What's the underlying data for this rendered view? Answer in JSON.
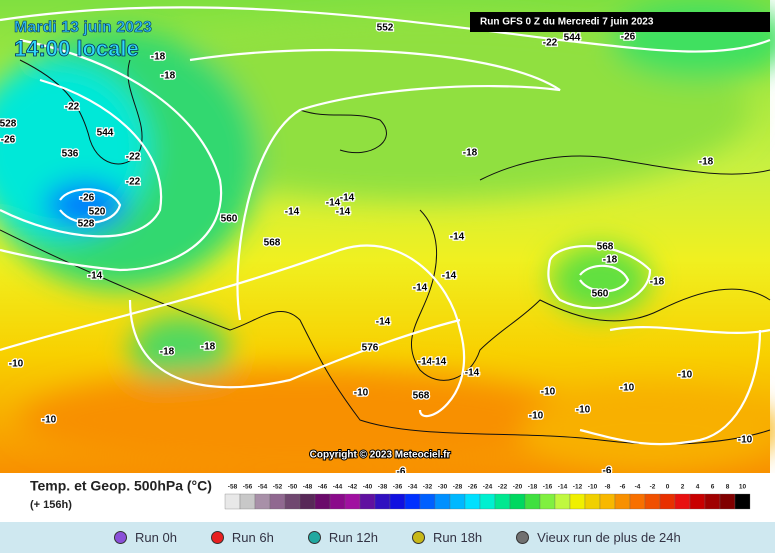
{
  "header": {
    "date": "Mardi 13 juin 2023",
    "time": "14:00 locale",
    "run": "Run GFS 0 Z du Mercredi 7 juin 2023",
    "copyright": "Copyright © 2023 Meteociel.fr"
  },
  "map_labels": [
    "552",
    "-22",
    "544",
    "-26",
    "-18",
    "-18",
    "-22",
    "544",
    "528",
    "-26",
    "536",
    "-22",
    "-22",
    "-18",
    "-18",
    "-26",
    "520",
    "528",
    "560",
    "-14",
    "-14",
    "-14",
    "-14",
    "568",
    "-14",
    "568",
    "-18",
    "-14",
    "-14",
    "-14",
    "-18",
    "560",
    "-14",
    "576",
    "-18",
    "-18",
    "-10",
    "-14",
    "-14",
    "-14",
    "-10",
    "-10",
    "-10",
    "568",
    "-10",
    "-10",
    "-10",
    "-10",
    "-10",
    "-6",
    "-6"
  ],
  "legend": {
    "title": "Temp. et Geop. 500hPa (°C)",
    "lead": "(+ 156h)",
    "labels": [
      "-58",
      "-56",
      "-54",
      "-52",
      "-50",
      "-48",
      "-46",
      "-44",
      "-42",
      "-40",
      "-38",
      "-36",
      "-34",
      "-32",
      "-30",
      "-28",
      "-26",
      "-24",
      "-22",
      "-20",
      "-18",
      "-16",
      "-14",
      "-12",
      "-10",
      "-8",
      "-6",
      "-4",
      "-2",
      "0",
      "2",
      "4",
      "6",
      "8",
      "10"
    ],
    "colors": [
      "#e8e8e8",
      "#c8c8c8",
      "#a890a8",
      "#906890",
      "#704870",
      "#582858",
      "#6a0a6a",
      "#8a0a8a",
      "#a010a0",
      "#6010a0",
      "#3010c0",
      "#1010e0",
      "#0030ff",
      "#0060ff",
      "#0090ff",
      "#00b8ff",
      "#00e0ff",
      "#00f0d0",
      "#00e890",
      "#00d860",
      "#40e040",
      "#80f040",
      "#c0f840",
      "#f0f000",
      "#f0d000",
      "#f8b800",
      "#f89000",
      "#f87000",
      "#f05000",
      "#e83000",
      "#e81010",
      "#c80000",
      "#a00000",
      "#800000",
      "#000000"
    ]
  },
  "runs": [
    {
      "label": "Run 0h",
      "color": "#8a4fd8"
    },
    {
      "label": "Run 6h",
      "color": "#e82020"
    },
    {
      "label": "Run 12h",
      "color": "#20a8a0"
    },
    {
      "label": "Run 18h",
      "color": "#c8b818"
    },
    {
      "label": "Vieux run de plus de 24h",
      "color": "#707070"
    }
  ]
}
